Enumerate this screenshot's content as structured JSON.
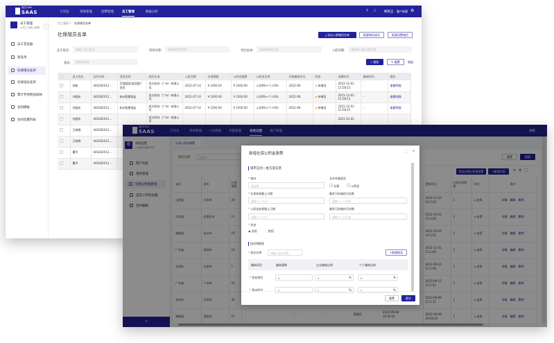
{
  "app1": {
    "logo_top": "双方OHR",
    "logo_text": "SAAS",
    "nav": [
      "工作台",
      "项目管理",
      "招聘管理",
      "员工管理",
      "数据分析"
    ],
    "nav_active": 3,
    "user": "韩英正",
    "dept": "客户经理",
    "sidebar": {
      "header_title": "员工管理",
      "header_sub": "以员工为核心管理",
      "items": [
        "员工花名册",
        "黑名单",
        "社保增员名单",
        "社保减员名单",
        "累计专项附加扣除",
        "合同模板",
        "合同签署列表"
      ],
      "active": 2
    },
    "breadcrumb": [
      "员工管理",
      "社保增员名单"
    ],
    "page_title": "社保增员名单",
    "actions": [
      "导出入职增员名单",
      "批量增员成功",
      "批量设置减员"
    ],
    "filters": {
      "name_label": "员工姓名:",
      "name_placeholder": "请输入员工姓名",
      "project_label": "项目名称:",
      "project_placeholder": "请选择项目名称",
      "contract_label": "合同主体:",
      "contract_placeholder": "请选择合同主体",
      "date_label": "入职日期:",
      "date_placeholder": "请选择入职日期范围",
      "status_label": "状态:",
      "status_placeholder": "请选择状态"
    },
    "search": "搜索",
    "reset": "重置",
    "collapse": "收起",
    "columns": [
      "员工姓名",
      "证件号码",
      "项目名称",
      "合同主体",
      "入职日期",
      "社保基数",
      "公积金基数",
      "公积金比例",
      "开始缴纳年月",
      "状态",
      "创建时间",
      "缴纳时间",
      "操作"
    ],
    "rows": [
      [
        "徐新",
        "440282012...",
        "22楼固定电话推广项目",
        "双方科技（广州）有限公司",
        "2022-07-14",
        "¥ 2300.00",
        "¥ 2300.00",
        "公司8%+个人8%",
        "2022-08",
        "待增员",
        "2021-12-02 15:58:15",
        "-",
        "查看明细"
      ],
      [
        "刘国庆",
        "440282012...",
        "杭州智慧酒店",
        "双方科技（广州）有限公司",
        "2022-07-14",
        "¥ 2300.00",
        "¥ 2300.00",
        "公司8%+个人8%",
        "2022-08",
        "待增员",
        "2021-12-02 15:58:15",
        "-",
        "查看明细"
      ],
      [
        "刘国庆",
        "440282012...",
        "杭州智慧酒店",
        "双方科技（广州）有限公司",
        "2022-07-14",
        "¥ 2300.00",
        "¥ 2300.00",
        "公司8%+个人8%",
        "2022-08",
        "待增员",
        "2021-12-02 15:58:15",
        "-",
        "查看明细"
      ],
      [
        "刘国庆",
        "440282012...",
        "",
        "双方科技（广州）有限公司",
        "",
        "",
        "",
        "",
        "",
        "",
        "2021-12-02",
        "",
        ""
      ],
      [
        "万晓雪",
        "440282012...",
        "",
        "",
        "",
        "",
        "",
        "",
        "",
        "",
        "",
        "",
        ""
      ],
      [
        "万晓雪",
        "440282012...",
        "",
        "",
        "",
        "",
        "",
        "",
        "",
        "",
        "",
        "",
        ""
      ],
      [
        "曹华",
        "440282012...",
        "",
        "",
        "",
        "",
        "",
        "",
        "",
        "",
        "",
        "",
        ""
      ],
      [
        "曹华",
        "440282012...",
        "",
        "",
        "",
        "",
        "",
        "",
        "",
        "",
        "",
        "",
        ""
      ]
    ],
    "status_color": "#f08a00"
  },
  "app2": {
    "logo_top": "双方OHR",
    "logo_text": "SAAS",
    "nav": [
      "工作台",
      "项目管理",
      "人员管理",
      "考勤管理",
      "系统设置",
      "租户管理"
    ],
    "nav_active": 4,
    "user": "演练",
    "sidebar": {
      "header_title": "系统设置",
      "header_sub": "以系统为确定方向",
      "items": [
        "用户列表",
        "角色管理",
        "社保公积金政策",
        "自定义字段设置",
        "合约编辑"
      ],
      "active": 2,
      "collapse": "<"
    },
    "tab": "社保公积金政策",
    "city_label": "城市名称:",
    "city_placeholder": "请选择",
    "reset": "重置",
    "search": "搜索",
    "export": "导出社保公积金政策",
    "add": "+新增方案",
    "columns": [
      "省份",
      "城市",
      "社保基数",
      "更新时间",
      "社保方案数量",
      "状态",
      "操作"
    ],
    "rows": [
      [
        "山西省",
        "大同市",
        "20",
        "2022-11-23 14:2:45",
        "1",
        "启用"
      ],
      [
        "河北省",
        "石家庄市",
        "11",
        "2022-10-31 11:4:26",
        "2",
        "启用"
      ],
      [
        "湖南省",
        "长沙市",
        "19",
        "2022-10-26 14:5:52",
        "1",
        "启用"
      ],
      [
        "广东省",
        "深圳市",
        "10",
        "2022-11-01 11:1:00",
        "1",
        "启用"
      ],
      [
        "天津市",
        "天津市",
        "1",
        "2022-09-16 11:1:28",
        "1",
        "启用"
      ],
      [
        "广东省",
        "广州市",
        "15",
        "2022-09-15 12:2:21",
        "1",
        "启用"
      ],
      [
        "北京市",
        "北京市",
        "30",
        "2022-09-09 12:2:11",
        "1",
        "启用"
      ],
      [
        "湖南省",
        "岳阳市",
        "15",
        "2022-09-08 16:56:22",
        "1",
        "启用"
      ]
    ],
    "last_row": {
      "c1": "--",
      "c2": "--",
      "c3": "管理员",
      "c4": "2022-09-08 16:56:35"
    },
    "ops": [
      "详情",
      "编辑",
      "删除"
    ],
    "status_color": "#3cb043"
  },
  "modal": {
    "title": "新增社保公积金政策",
    "section1": "城市五险一金方案信息",
    "city_label": "城市",
    "city_placeholder": "请选择",
    "supp_label": "允许补缴类型",
    "supp_opts": [
      "社保",
      "公积金"
    ],
    "ss_deadline_label": "社保参保截止日期",
    "ss_deadline_placeholder": "请输入1-31日",
    "ss_months_label": "最多可补缴的月份数",
    "ss_months_placeholder": "请输入1-12月份",
    "hf_deadline_label": "公积金参保截止日期",
    "hf_deadline_placeholder": "请输入1-31日",
    "hf_months_label": "最多可补缴的月份数",
    "hf_months_placeholder": "请输入1-12月份",
    "status_label": "状态",
    "status_opts": [
      "启用",
      "禁用"
    ],
    "status_selected": "启用",
    "section2": "档次明细表",
    "tier_label": "档次名称",
    "tier_placeholder": "请输入档次名称",
    "add_tier": "+新增档次",
    "columns": [
      "缴纳项目",
      "缴纳基数",
      "企业缴纳比例",
      "个人缴纳比例"
    ],
    "rows": [
      {
        "item": "养老保险",
        "base": "0",
        "company": "0",
        "personal": "0"
      },
      {
        "item": "基本医疗",
        "base": "0",
        "company": "0",
        "personal": "0"
      }
    ],
    "pct": "%",
    "cancel": "重置",
    "confirm": "提交"
  }
}
